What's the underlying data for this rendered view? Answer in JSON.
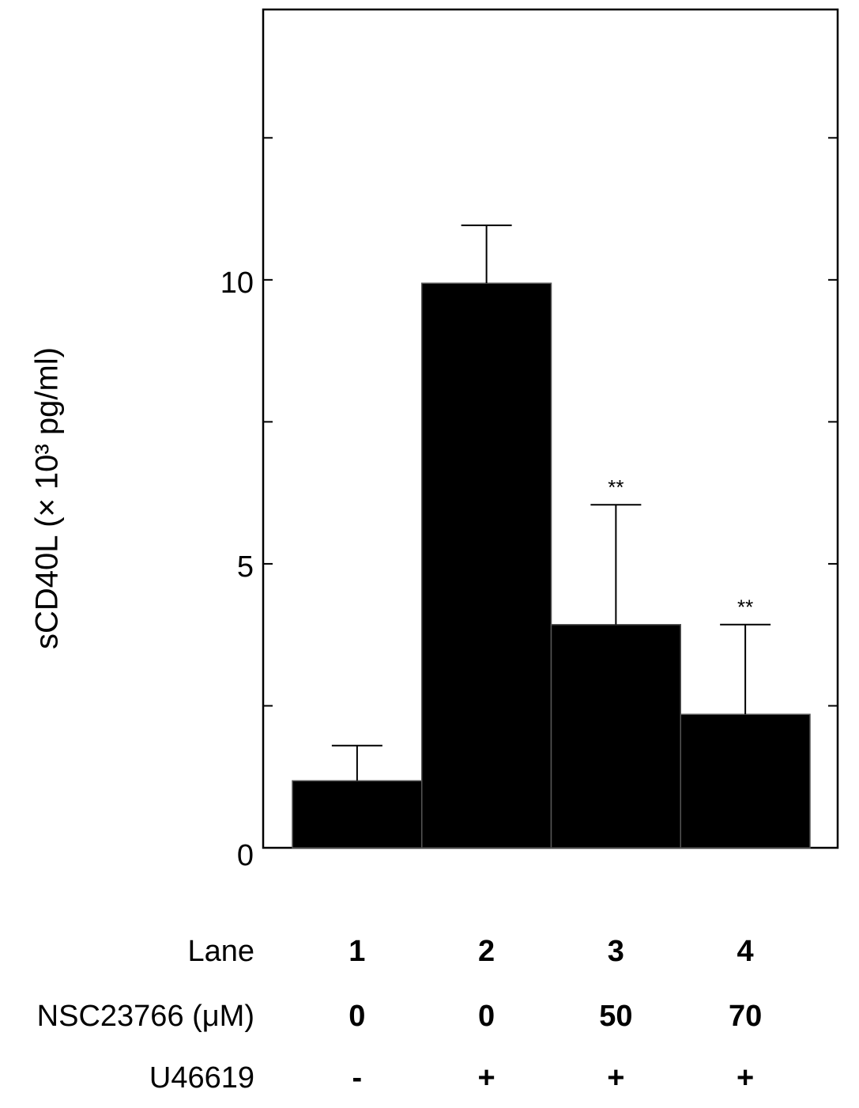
{
  "chart_data": {
    "type": "bar",
    "y_label": "sCD40L (× 10³ pg/ml)",
    "category_label": "Lane",
    "categories": [
      "1",
      "2",
      "3",
      "4"
    ],
    "values": [
      1.18,
      9.94,
      3.93,
      2.35
    ],
    "errors": [
      0.62,
      1.02,
      2.11,
      1.58
    ],
    "significance": [
      null,
      null,
      "**",
      "**"
    ],
    "conditions": [
      {
        "label": "NSC23766 (μM)",
        "values": [
          "0",
          "0",
          "50",
          "70"
        ]
      },
      {
        "label": "U46619",
        "values": [
          "-",
          "+",
          "+",
          "+"
        ]
      }
    ],
    "color": "#000000",
    "ylim": [
      0,
      14.76
    ],
    "yticks": [
      0,
      5,
      10
    ],
    "minor_yticks": [
      2.5,
      7.5,
      12.5
    ]
  }
}
